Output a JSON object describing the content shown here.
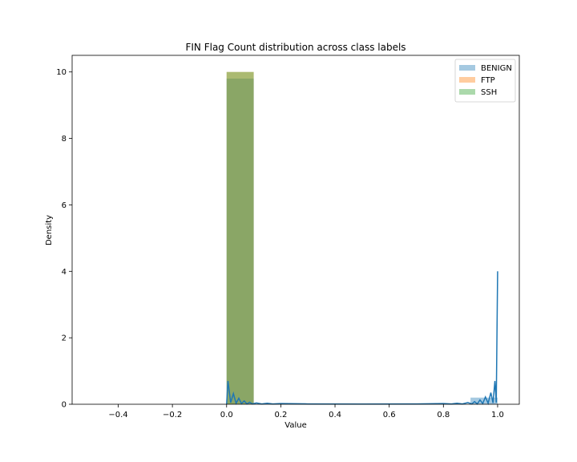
{
  "chart_data": {
    "type": "bar",
    "title": "FIN Flag Count distribution across class labels",
    "xlabel": "Value",
    "ylabel": "Density",
    "xlim": [
      -0.57,
      1.08
    ],
    "ylim": [
      0,
      10.5
    ],
    "xticks": [
      -0.4,
      -0.2,
      0.0,
      0.2,
      0.4,
      0.6,
      0.8,
      1.0
    ],
    "xtick_labels": [
      "−0.4",
      "−0.2",
      "0.0",
      "0.2",
      "0.4",
      "0.6",
      "0.8",
      "1.0"
    ],
    "yticks": [
      0,
      2,
      4,
      6,
      8,
      10
    ],
    "ytick_labels": [
      "0",
      "2",
      "4",
      "6",
      "8",
      "10"
    ],
    "grid": false,
    "legend_position": "top-right",
    "series": [
      {
        "name": "BENIGN",
        "color": "#1f77b4",
        "bars": [
          {
            "x0": 0.0,
            "x1": 0.1,
            "density": 9.8
          },
          {
            "x0": 0.9,
            "x1": 1.0,
            "density": 0.2
          }
        ],
        "kde": [
          [
            0.0,
            0.0
          ],
          [
            0.005,
            0.7
          ],
          [
            0.015,
            0.05
          ],
          [
            0.025,
            0.32
          ],
          [
            0.035,
            0.03
          ],
          [
            0.045,
            0.18
          ],
          [
            0.055,
            0.02
          ],
          [
            0.065,
            0.1
          ],
          [
            0.075,
            0.01
          ],
          [
            0.085,
            0.06
          ],
          [
            0.095,
            0.01
          ],
          [
            0.11,
            0.04
          ],
          [
            0.13,
            0.01
          ],
          [
            0.15,
            0.03
          ],
          [
            0.17,
            0.01
          ],
          [
            0.2,
            0.02
          ],
          [
            0.3,
            0.01
          ],
          [
            0.5,
            0.005
          ],
          [
            0.7,
            0.01
          ],
          [
            0.8,
            0.02
          ],
          [
            0.83,
            0.01
          ],
          [
            0.85,
            0.03
          ],
          [
            0.87,
            0.01
          ],
          [
            0.89,
            0.05
          ],
          [
            0.905,
            0.01
          ],
          [
            0.915,
            0.08
          ],
          [
            0.925,
            0.01
          ],
          [
            0.935,
            0.13
          ],
          [
            0.945,
            0.02
          ],
          [
            0.955,
            0.22
          ],
          [
            0.965,
            0.03
          ],
          [
            0.975,
            0.35
          ],
          [
            0.983,
            0.04
          ],
          [
            0.99,
            0.7
          ],
          [
            0.995,
            0.05
          ],
          [
            1.0,
            4.0
          ]
        ]
      },
      {
        "name": "FTP",
        "color": "#ff7f0e",
        "bars": [
          {
            "x0": 0.0,
            "x1": 0.1,
            "density": 10.0
          }
        ]
      },
      {
        "name": "SSH",
        "color": "#2ca02c",
        "bars": [
          {
            "x0": 0.0,
            "x1": 0.1,
            "density": 10.0
          }
        ]
      }
    ]
  }
}
